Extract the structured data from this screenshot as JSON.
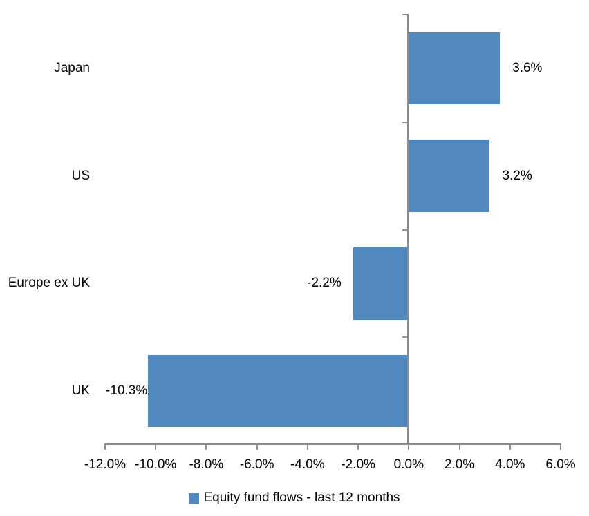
{
  "chart_data": {
    "type": "bar",
    "orientation": "horizontal",
    "categories": [
      "Japan",
      "US",
      "Europe ex UK",
      "UK"
    ],
    "series": [
      {
        "name": "Equity fund flows - last 12 months",
        "values": [
          3.6,
          3.2,
          -2.2,
          -10.3
        ],
        "value_labels": [
          "3.6%",
          "3.2%",
          "-2.2%",
          "-10.3%"
        ],
        "color": "#5189BE"
      }
    ],
    "xlim": [
      -12,
      6
    ],
    "x_ticks": [
      -12,
      -10,
      -8,
      -6,
      -4,
      -2,
      0,
      2,
      4,
      6
    ],
    "x_tick_labels": [
      "-12.0%",
      "-10.0%",
      "-8.0%",
      "-6.0%",
      "-4.0%",
      "-2.0%",
      "0.0%",
      "2.0%",
      "4.0%",
      "6.0%"
    ],
    "grid": "off",
    "legend_position": "bottom",
    "axis_color": "#8C8C8C",
    "text_color": "#000000",
    "background": "#FFFFFF"
  },
  "legend": {
    "label": "Equity fund flows - last 12 months",
    "swatch_color": "#5189BE"
  }
}
